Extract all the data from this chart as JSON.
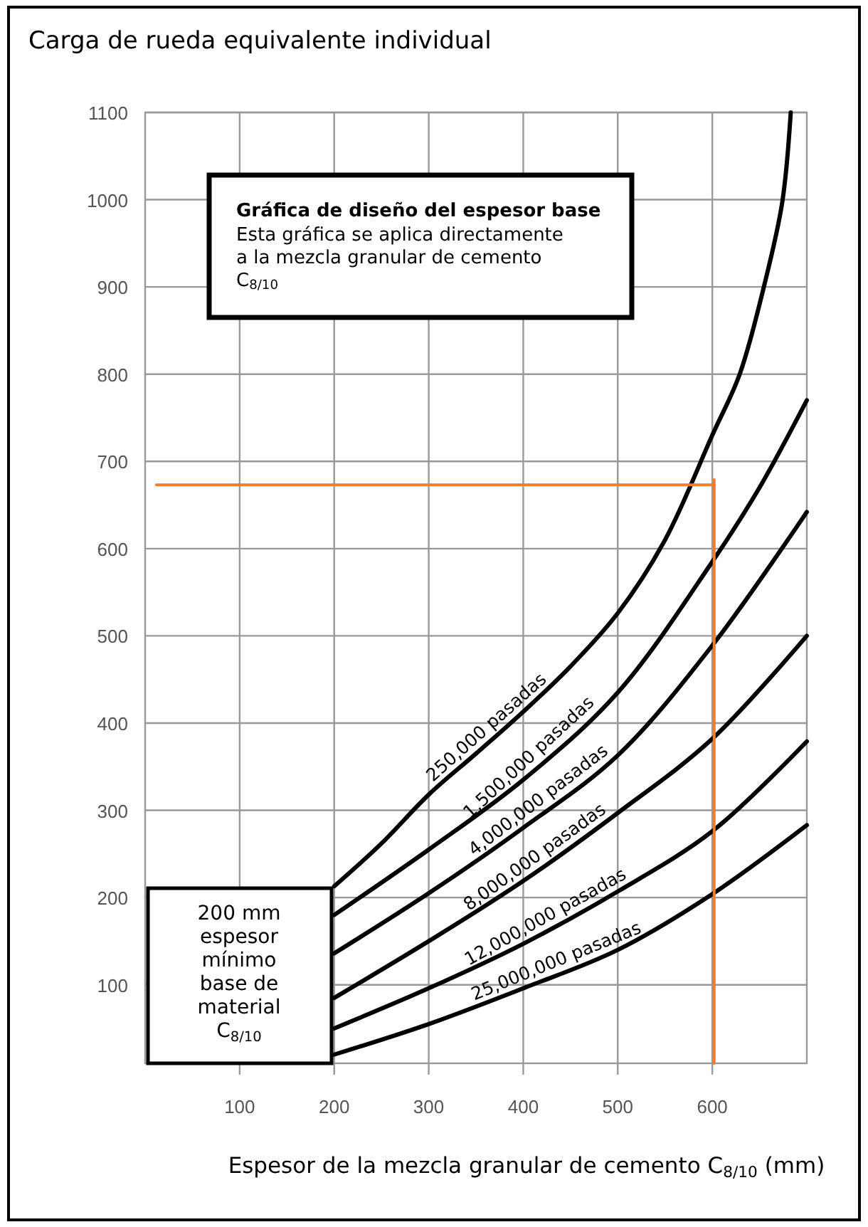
{
  "chart_data": {
    "type": "line",
    "ylabel": "Carga de rueda equivalente individual",
    "xlabel": "Espesor de la mezcla granular de cemento C$_{8/10}$ (mm)",
    "annotations": [
      "Gráfica de diseño del espesor base",
      "Esta gráfica se aplica directamente a la mezcla granular de cemento C$_{8/10}$",
      "200 mm espesor mínimo base de material C$_{8/10}$"
    ],
    "xlim": [
      0,
      700
    ],
    "ylim": [
      10,
      1100
    ],
    "xticks": [
      100,
      200,
      300,
      400,
      500,
      600
    ],
    "yticks": [
      100,
      200,
      300,
      400,
      500,
      600,
      700,
      800,
      900,
      1000,
      1100
    ],
    "grid": true,
    "series": [
      {
        "name": "250,000 pasadas",
        "color": "#000000",
        "x": [
          200,
          250,
          300,
          350,
          400,
          450,
          500,
          550,
          600,
          629,
          655,
          674,
          683
        ],
        "values": [
          213,
          262,
          318,
          365,
          413,
          465,
          526,
          610,
          730,
          800,
          902,
          997,
          1100
        ]
      },
      {
        "name": "1,500,000 pasadas",
        "color": "#000000",
        "x": [
          200,
          300,
          400,
          500,
          600,
          650,
          700
        ],
        "values": [
          180,
          255,
          335,
          435,
          585,
          670,
          770
        ]
      },
      {
        "name": "4,000,000 pasadas",
        "color": "#000000",
        "x": [
          200,
          300,
          400,
          500,
          600,
          700
        ],
        "values": [
          136,
          205,
          280,
          363,
          489,
          642
        ]
      },
      {
        "name": "8,000,000 pasadas",
        "color": "#000000",
        "x": [
          200,
          300,
          400,
          500,
          600,
          700
        ],
        "values": [
          85,
          150,
          219,
          297,
          382,
          500
        ]
      },
      {
        "name": "12,000,000 pasadas",
        "color": "#000000",
        "x": [
          200,
          300,
          400,
          500,
          600,
          700
        ],
        "values": [
          50,
          96,
          147,
          207,
          276,
          379
        ]
      },
      {
        "name": "25,000,000 pasadas",
        "color": "#000000",
        "x": [
          200,
          300,
          400,
          500,
          600,
          700
        ],
        "values": [
          20,
          55,
          96,
          140,
          204,
          283
        ]
      },
      {
        "color": "#ed7d31",
        "x": [
          12,
          602
        ],
        "values": [
          673,
          673
        ]
      },
      {
        "color": "#ed7d31",
        "x": [
          602,
          602
        ],
        "values": [
          679,
          10
        ]
      }
    ]
  }
}
